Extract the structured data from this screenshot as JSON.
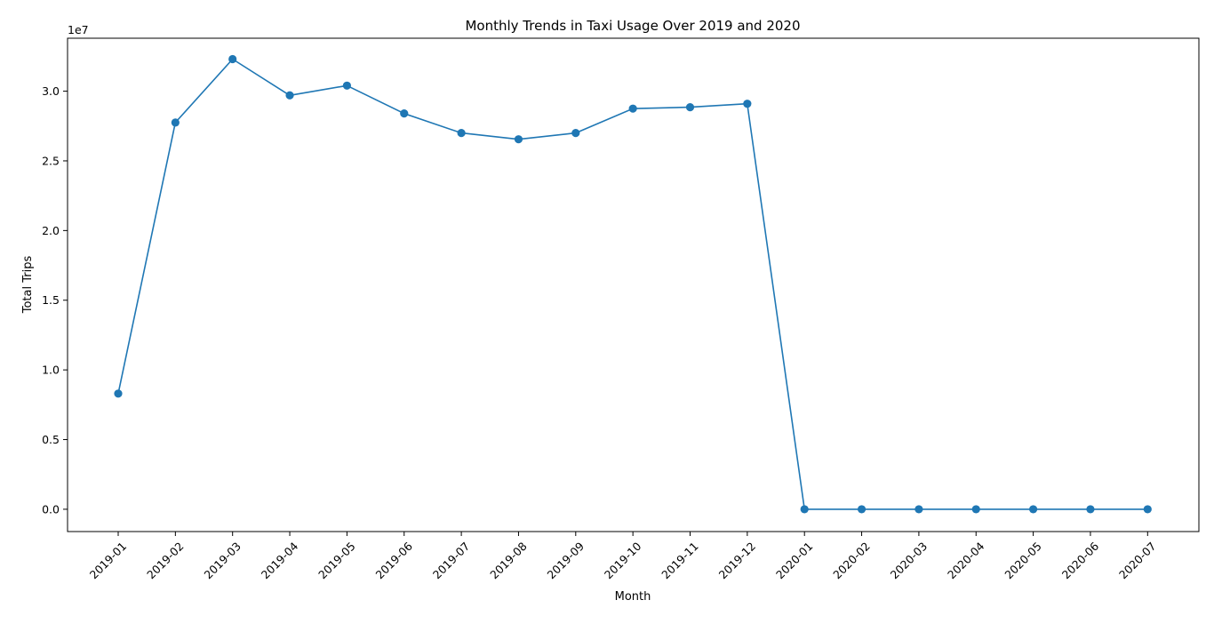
{
  "chart_data": {
    "type": "line",
    "title": "Monthly Trends in Taxi Usage Over 2019 and 2020",
    "xlabel": "Month",
    "ylabel": "Total Trips",
    "y_scale_multiplier": "1e7",
    "ylim": [
      -1600000.0,
      33800000.0
    ],
    "yticks": [
      {
        "value": 0,
        "label": "0.0"
      },
      {
        "value": 5000000,
        "label": "0.5"
      },
      {
        "value": 10000000,
        "label": "1.0"
      },
      {
        "value": 15000000,
        "label": "1.5"
      },
      {
        "value": 20000000,
        "label": "2.0"
      },
      {
        "value": 25000000,
        "label": "2.5"
      },
      {
        "value": 30000000,
        "label": "3.0"
      }
    ],
    "grid": false,
    "legend": "none",
    "marker": "circle",
    "line_color": "#1f77b4",
    "categories": [
      "2019-01",
      "2019-02",
      "2019-03",
      "2019-04",
      "2019-05",
      "2019-06",
      "2019-07",
      "2019-08",
      "2019-09",
      "2019-10",
      "2019-11",
      "2019-12",
      "2020-01",
      "2020-02",
      "2020-03",
      "2020-04",
      "2020-05",
      "2020-06",
      "2020-07"
    ],
    "values": [
      8300000,
      27750000,
      32300000,
      29700000,
      30400000,
      28400000,
      27000000,
      26550000,
      27000000,
      28750000,
      28850000,
      29100000,
      0,
      0,
      0,
      0,
      0,
      0,
      0
    ]
  }
}
